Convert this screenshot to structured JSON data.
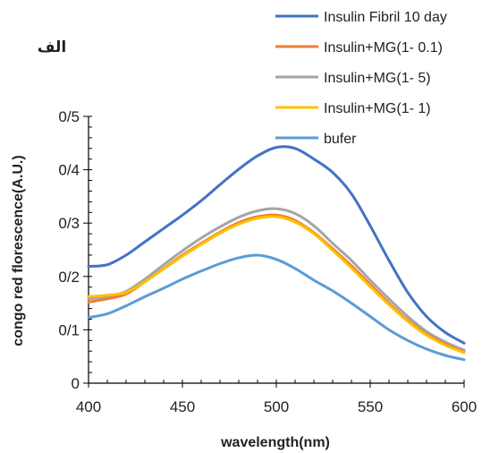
{
  "panel_label": "الف",
  "chart_data": {
    "type": "line",
    "xlabel": "wavelength(nm)",
    "ylabel": "congo red florescence(A.U.)",
    "xlim": [
      400,
      600
    ],
    "ylim": [
      0,
      0.5
    ],
    "x_ticks": [
      400,
      450,
      500,
      550,
      600
    ],
    "x_tick_labels": [
      "400",
      "450",
      "500",
      "550",
      "600"
    ],
    "y_ticks": [
      0,
      0.1,
      0.2,
      0.3,
      0.4,
      0.5
    ],
    "y_tick_labels": [
      "0",
      "0/1",
      "0/2",
      "0/3",
      "0/4",
      "0/5"
    ],
    "legend_position": "top-right",
    "grid": false,
    "x": [
      400,
      410,
      420,
      430,
      440,
      450,
      460,
      470,
      480,
      490,
      500,
      510,
      520,
      530,
      540,
      550,
      560,
      570,
      580,
      590,
      600
    ],
    "series": [
      {
        "name": "Insulin Fibril 10 day",
        "color": "#4472C4",
        "values": [
          0.219,
          0.222,
          0.24,
          0.265,
          0.29,
          0.315,
          0.342,
          0.372,
          0.401,
          0.426,
          0.442,
          0.44,
          0.42,
          0.395,
          0.355,
          0.295,
          0.23,
          0.17,
          0.125,
          0.095,
          0.075
        ]
      },
      {
        "name": "Insulin+MG(1- 0.1)",
        "color": "#ED7D31",
        "values": [
          0.152,
          0.158,
          0.167,
          0.19,
          0.215,
          0.24,
          0.262,
          0.283,
          0.301,
          0.312,
          0.315,
          0.305,
          0.282,
          0.252,
          0.22,
          0.185,
          0.15,
          0.118,
          0.092,
          0.073,
          0.058
        ]
      },
      {
        "name": "Insulin+MG(1- 5)",
        "color": "#A5A5A5",
        "values": [
          0.158,
          0.162,
          0.172,
          0.195,
          0.222,
          0.248,
          0.272,
          0.293,
          0.311,
          0.323,
          0.327,
          0.318,
          0.295,
          0.262,
          0.23,
          0.193,
          0.158,
          0.125,
          0.097,
          0.077,
          0.062
        ]
      },
      {
        "name": "Insulin+MG(1- 1)",
        "color": "#FFC000",
        "values": [
          0.162,
          0.165,
          0.17,
          0.19,
          0.214,
          0.238,
          0.26,
          0.281,
          0.298,
          0.309,
          0.312,
          0.302,
          0.28,
          0.249,
          0.216,
          0.181,
          0.147,
          0.116,
          0.09,
          0.071,
          0.057
        ]
      },
      {
        "name": "bufer",
        "color": "#5B9BD5",
        "values": [
          0.123,
          0.13,
          0.145,
          0.162,
          0.178,
          0.195,
          0.21,
          0.224,
          0.235,
          0.24,
          0.232,
          0.215,
          0.193,
          0.173,
          0.15,
          0.125,
          0.1,
          0.08,
          0.064,
          0.052,
          0.044
        ]
      }
    ]
  }
}
